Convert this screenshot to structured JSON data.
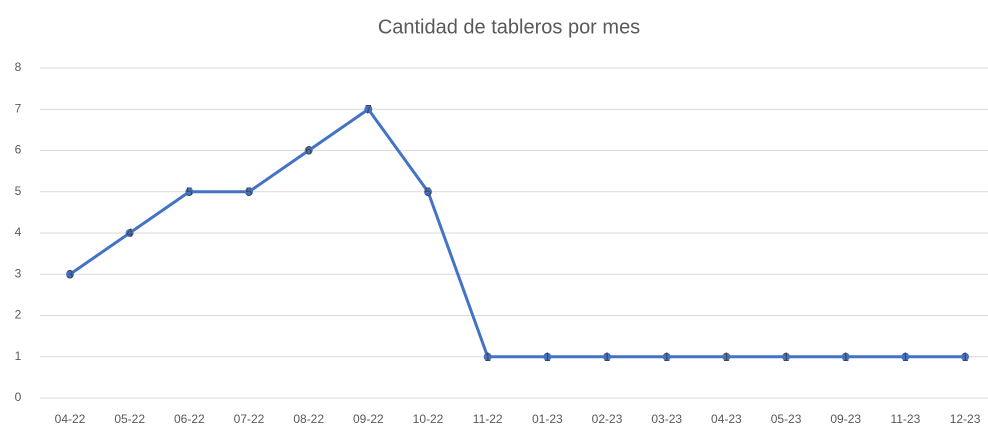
{
  "chart_data": {
    "type": "line",
    "title": "Cantidad de tableros por mes",
    "categories": [
      "04-22",
      "05-22",
      "06-22",
      "07-22",
      "08-22",
      "09-22",
      "10-22",
      "11-22",
      "01-23",
      "02-23",
      "03-23",
      "04-23",
      "05-23",
      "09-23",
      "11-23",
      "12-23"
    ],
    "values": [
      3,
      4,
      5,
      5,
      6,
      7,
      5,
      1,
      1,
      1,
      1,
      1,
      1,
      1,
      1,
      1
    ],
    "color": "#4472c4",
    "ylim": [
      0,
      8
    ],
    "yticks": [
      0,
      1,
      2,
      3,
      4,
      5,
      6,
      7,
      8
    ],
    "grid": true
  }
}
